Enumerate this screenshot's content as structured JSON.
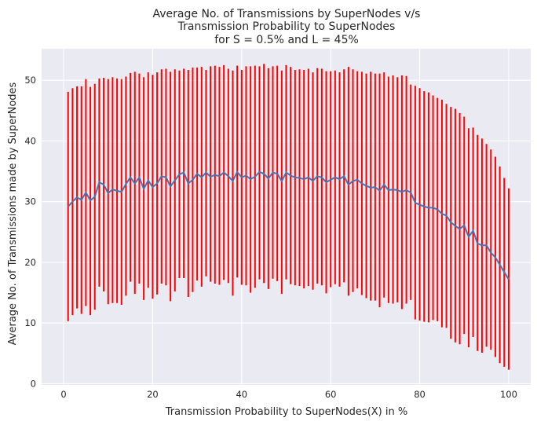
{
  "chart_data": {
    "type": "line",
    "title_lines": [
      "Average No. of Transmissions by SuperNodes v/s",
      "Transmission Probability to SuperNodes",
      "for S = 0.5% and L = 45%"
    ],
    "xlabel": "Transmission Probability to SuperNodes(X) in %",
    "ylabel": "Average No. of Transmissions made by SuperNodes",
    "xlim": [
      -4.95,
      104.95
    ],
    "ylim": [
      -0.2,
      55.2
    ],
    "xticks": [
      0,
      20,
      40,
      60,
      80,
      100
    ],
    "yticks": [
      0,
      10,
      20,
      30,
      40,
      50
    ],
    "grid": true,
    "background": "#eaeaf2",
    "mean_color": "#4c72b0",
    "errorbar_color": "#ff0000",
    "x": [
      1,
      2,
      3,
      4,
      5,
      6,
      7,
      8,
      9,
      10,
      11,
      12,
      13,
      14,
      15,
      16,
      17,
      18,
      19,
      20,
      21,
      22,
      23,
      24,
      25,
      26,
      27,
      28,
      29,
      30,
      31,
      32,
      33,
      34,
      35,
      36,
      37,
      38,
      39,
      40,
      41,
      42,
      43,
      44,
      45,
      46,
      47,
      48,
      49,
      50,
      51,
      52,
      53,
      54,
      55,
      56,
      57,
      58,
      59,
      60,
      61,
      62,
      63,
      64,
      65,
      66,
      67,
      68,
      69,
      70,
      71,
      72,
      73,
      74,
      75,
      76,
      77,
      78,
      79,
      80,
      81,
      82,
      83,
      84,
      85,
      86,
      87,
      88,
      89,
      90,
      91,
      92,
      93,
      94,
      95,
      96,
      97,
      98,
      99,
      100
    ],
    "mean": [
      29.2,
      30.0,
      30.7,
      30.3,
      31.5,
      30.2,
      30.8,
      33.2,
      32.8,
      31.4,
      32.0,
      31.8,
      31.6,
      32.9,
      34.0,
      33.0,
      34.0,
      32.1,
      33.5,
      32.4,
      33.0,
      34.2,
      34.0,
      32.5,
      33.5,
      34.5,
      34.8,
      33.0,
      33.6,
      34.6,
      34.0,
      34.8,
      34.1,
      34.4,
      34.2,
      34.8,
      34.2,
      33.4,
      34.9,
      34.0,
      34.3,
      33.7,
      34.1,
      34.9,
      34.6,
      33.8,
      34.8,
      34.6,
      33.4,
      34.8,
      34.3,
      34.0,
      33.9,
      33.7,
      34.0,
      33.4,
      34.2,
      34.0,
      33.2,
      33.6,
      34.0,
      33.7,
      34.2,
      32.8,
      33.4,
      33.6,
      33.0,
      32.6,
      32.3,
      32.4,
      31.8,
      32.8,
      31.9,
      32.0,
      31.9,
      31.6,
      31.9,
      31.5,
      29.8,
      29.5,
      29.2,
      29.0,
      29.0,
      28.7,
      28.0,
      27.7,
      26.6,
      26.0,
      25.5,
      26.1,
      24.2,
      25.2,
      23.1,
      22.8,
      22.8,
      21.6,
      20.8,
      19.6,
      18.4,
      17.2
    ],
    "upper": [
      48.1,
      48.7,
      49.0,
      49.0,
      50.2,
      48.9,
      49.4,
      50.3,
      50.4,
      50.2,
      50.5,
      50.3,
      50.2,
      50.6,
      51.2,
      51.4,
      51.1,
      50.5,
      51.3,
      50.9,
      51.3,
      51.8,
      51.9,
      51.4,
      51.8,
      51.6,
      51.9,
      51.7,
      52.1,
      52.1,
      52.2,
      51.7,
      52.3,
      52.4,
      52.2,
      52.5,
      51.9,
      51.6,
      52.4,
      51.7,
      52.3,
      52.3,
      52.4,
      52.3,
      52.7,
      52.0,
      52.3,
      52.4,
      51.6,
      52.5,
      52.2,
      51.7,
      51.8,
      51.7,
      51.9,
      51.3,
      52.0,
      51.9,
      51.5,
      51.5,
      51.6,
      51.3,
      51.8,
      52.2,
      51.8,
      51.5,
      51.4,
      51.1,
      51.4,
      51.1,
      51.1,
      51.3,
      50.6,
      50.8,
      50.5,
      50.8,
      50.7,
      49.3,
      49.1,
      48.7,
      48.2,
      48.0,
      47.5,
      47.1,
      46.8,
      46.1,
      45.6,
      45.3,
      44.6,
      44.0,
      42.1,
      42.2,
      41.0,
      40.4,
      39.5,
      38.6,
      37.4,
      35.8,
      33.9,
      32.2
    ],
    "lower": [
      10.3,
      11.3,
      12.4,
      11.5,
      12.8,
      11.3,
      12.2,
      16.0,
      15.2,
      13.1,
      13.3,
      13.3,
      13.0,
      14.5,
      16.8,
      14.8,
      16.5,
      13.8,
      15.8,
      14.0,
      14.7,
      16.5,
      16.2,
      13.6,
      15.2,
      17.4,
      17.4,
      14.3,
      15.1,
      17.0,
      16.0,
      17.7,
      16.8,
      16.5,
      16.3,
      17.1,
      16.6,
      14.5,
      17.5,
      16.3,
      16.2,
      15.0,
      15.8,
      17.2,
      16.6,
      15.6,
      17.3,
      16.9,
      14.8,
      17.2,
      16.4,
      16.2,
      16.1,
      15.7,
      16.1,
      15.5,
      16.5,
      16.2,
      14.9,
      15.9,
      16.4,
      16.0,
      16.7,
      14.5,
      15.1,
      15.7,
      14.6,
      14.1,
      13.7,
      13.7,
      12.6,
      14.2,
      13.3,
      13.2,
      13.4,
      12.3,
      13.2,
      13.8,
      10.6,
      10.4,
      10.2,
      10.1,
      10.5,
      10.3,
      9.3,
      9.2,
      7.4,
      6.8,
      6.5,
      8.2,
      6.0,
      7.7,
      5.4,
      5.1,
      6.1,
      5.6,
      4.4,
      3.4,
      2.8,
      2.3
    ]
  }
}
